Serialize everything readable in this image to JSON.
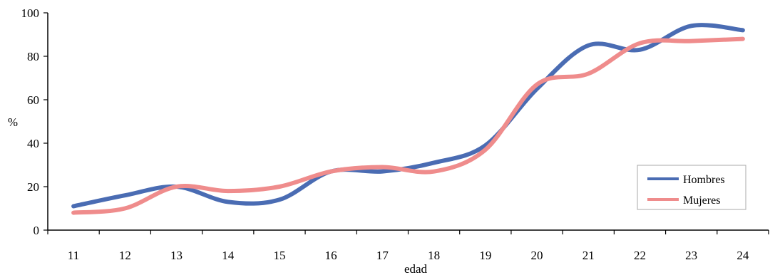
{
  "chart_data": {
    "type": "line",
    "title": "",
    "xlabel": "edad",
    "ylabel": "%",
    "categories": [
      "11",
      "12",
      "13",
      "14",
      "15",
      "16",
      "17",
      "18",
      "19",
      "20",
      "21",
      "22",
      "23",
      "24"
    ],
    "x": [
      11,
      12,
      13,
      14,
      15,
      16,
      17,
      18,
      19,
      20,
      21,
      22,
      23,
      24
    ],
    "ylim": [
      0,
      100
    ],
    "yticks": [
      "0",
      "20",
      "40",
      "60",
      "80",
      "100"
    ],
    "grid": false,
    "legend_position": "bottom-right",
    "series": [
      {
        "name": "Hombres",
        "color": "#4a6cb3",
        "values": [
          11,
          16,
          20,
          13,
          14,
          27,
          27,
          31,
          39,
          65,
          85,
          83,
          94,
          92
        ]
      },
      {
        "name": "Mujeres",
        "color": "#ef8c8c",
        "values": [
          8,
          10,
          20,
          18,
          20,
          27,
          29,
          27,
          37,
          67,
          72,
          86,
          87,
          88
        ]
      }
    ]
  }
}
